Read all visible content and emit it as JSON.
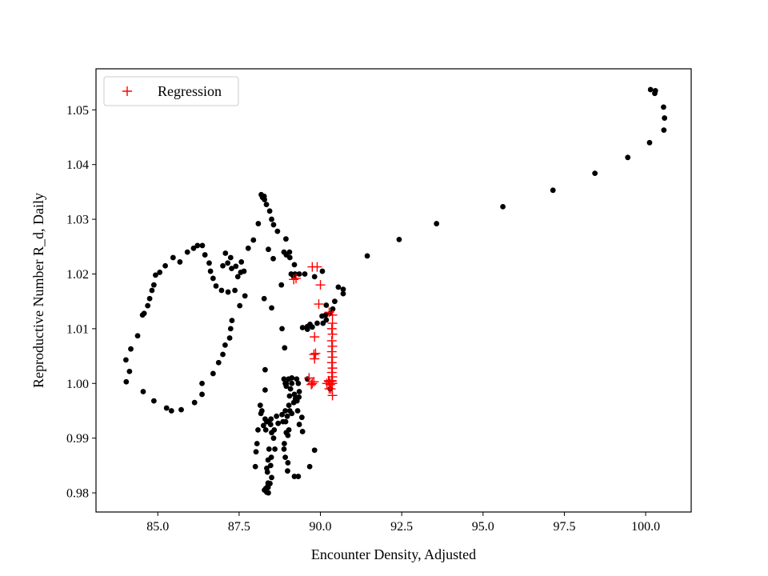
{
  "chart_data": {
    "type": "scatter",
    "title": "",
    "xlabel": "Encounter Density, Adjusted",
    "ylabel": "Reproductive Number R_d, Daily",
    "xlim": [
      83.1,
      101.4
    ],
    "ylim": [
      0.9765,
      1.0575
    ],
    "grid": false,
    "legend_position": "top-left",
    "x_ticks": [
      {
        "value": 85.0,
        "label": "85.0"
      },
      {
        "value": 87.5,
        "label": "87.5"
      },
      {
        "value": 90.0,
        "label": "90.0"
      },
      {
        "value": 92.5,
        "label": "92.5"
      },
      {
        "value": 95.0,
        "label": "95.0"
      },
      {
        "value": 97.5,
        "label": "97.5"
      },
      {
        "value": 100.0,
        "label": "100.0"
      }
    ],
    "y_ticks": [
      {
        "value": 0.98,
        "label": "0.98"
      },
      {
        "value": 0.99,
        "label": "0.99"
      },
      {
        "value": 1.0,
        "label": "1.00"
      },
      {
        "value": 1.01,
        "label": "1.01"
      },
      {
        "value": 1.02,
        "label": "1.02"
      },
      {
        "value": 1.03,
        "label": "1.03"
      },
      {
        "value": 1.04,
        "label": "1.04"
      },
      {
        "value": 1.05,
        "label": "1.05"
      }
    ],
    "series": [
      {
        "marker": "dot",
        "color": "#000000",
        "points": [
          [
            100.15,
            1.0537
          ],
          [
            100.3,
            1.0535
          ],
          [
            100.28,
            1.053
          ],
          [
            100.55,
            1.0505
          ],
          [
            100.58,
            1.0485
          ],
          [
            100.56,
            1.0463
          ],
          [
            100.12,
            1.044
          ],
          [
            99.45,
            1.0413
          ],
          [
            98.44,
            1.0384
          ],
          [
            97.15,
            1.0353
          ],
          [
            95.61,
            1.0323
          ],
          [
            93.57,
            1.0292
          ],
          [
            92.42,
            1.0263
          ],
          [
            91.44,
            1.0233
          ],
          [
            90.7,
            1.0172
          ],
          [
            90.7,
            1.0164
          ],
          [
            90.55,
            1.0176
          ],
          [
            90.44,
            1.015
          ],
          [
            90.18,
            1.0143
          ],
          [
            90.3,
            1.0128
          ],
          [
            90.38,
            1.0136
          ],
          [
            90.16,
            1.0125
          ],
          [
            90.05,
            1.0123
          ],
          [
            90.18,
            1.0116
          ],
          [
            90.08,
            1.011
          ],
          [
            89.9,
            1.011
          ],
          [
            89.75,
            1.0103
          ],
          [
            89.6,
            1.0104
          ],
          [
            89.45,
            1.0102
          ],
          [
            89.6,
            1.0099
          ],
          [
            89.68,
            1.0108
          ],
          [
            90.06,
            1.0205
          ],
          [
            89.82,
            1.0195
          ],
          [
            89.52,
            1.02
          ],
          [
            89.35,
            1.02
          ],
          [
            89.18,
            1.0195
          ],
          [
            89.22,
            1.02
          ],
          [
            88.8,
            1.018
          ],
          [
            89.06,
            1.023
          ],
          [
            89.05,
            1.024
          ],
          [
            88.88,
            1.024
          ],
          [
            88.95,
            1.0235
          ],
          [
            88.55,
            1.0228
          ],
          [
            88.4,
            1.0245
          ],
          [
            89.2,
            1.0217
          ],
          [
            89.1,
            1.02
          ],
          [
            88.94,
            1.0264
          ],
          [
            88.68,
            1.0278
          ],
          [
            88.56,
            1.029
          ],
          [
            88.5,
            1.03
          ],
          [
            88.44,
            1.0315
          ],
          [
            88.34,
            1.0327
          ],
          [
            88.28,
            1.0336
          ],
          [
            88.22,
            1.034
          ],
          [
            88.18,
            1.0345
          ],
          [
            88.27,
            1.0342
          ],
          [
            88.09,
            1.0292
          ],
          [
            87.94,
            1.0262
          ],
          [
            87.78,
            1.0247
          ],
          [
            87.57,
            1.0222
          ],
          [
            87.55,
            1.0203
          ],
          [
            87.46,
            1.0195
          ],
          [
            87.24,
            1.023
          ],
          [
            87.08,
            1.0238
          ],
          [
            87.15,
            1.022
          ],
          [
            87.0,
            1.0215
          ],
          [
            87.27,
            1.021
          ],
          [
            87.4,
            1.0214
          ],
          [
            87.65,
            1.0205
          ],
          [
            87.37,
            1.017
          ],
          [
            87.16,
            1.0167
          ],
          [
            86.96,
            1.017
          ],
          [
            86.79,
            1.0178
          ],
          [
            86.7,
            1.0192
          ],
          [
            86.62,
            1.0205
          ],
          [
            86.58,
            1.022
          ],
          [
            86.45,
            1.0235
          ],
          [
            86.37,
            1.0252
          ],
          [
            86.22,
            1.0252
          ],
          [
            86.1,
            1.0247
          ],
          [
            85.91,
            1.024
          ],
          [
            85.68,
            1.0222
          ],
          [
            85.47,
            1.023
          ],
          [
            85.23,
            1.0215
          ],
          [
            85.06,
            1.0203
          ],
          [
            84.93,
            1.0198
          ],
          [
            84.88,
            1.018
          ],
          [
            84.82,
            1.017
          ],
          [
            84.75,
            1.0155
          ],
          [
            84.69,
            1.0142
          ],
          [
            84.58,
            1.0128
          ],
          [
            84.53,
            1.0125
          ],
          [
            84.38,
            1.0087
          ],
          [
            84.17,
            1.0063
          ],
          [
            84.02,
            1.0043
          ],
          [
            84.03,
            1.0003
          ],
          [
            84.13,
            1.0022
          ],
          [
            84.55,
            0.9985
          ],
          [
            84.88,
            0.9968
          ],
          [
            85.27,
            0.9955
          ],
          [
            85.42,
            0.995
          ],
          [
            85.72,
            0.9952
          ],
          [
            86.13,
            0.9965
          ],
          [
            86.36,
            0.998
          ],
          [
            86.36,
            1.0
          ],
          [
            86.7,
            1.0018
          ],
          [
            86.87,
            1.0038
          ],
          [
            87.0,
            1.0053
          ],
          [
            87.07,
            1.007
          ],
          [
            87.21,
            1.0083
          ],
          [
            87.24,
            1.01
          ],
          [
            87.28,
            1.0115
          ],
          [
            87.52,
            1.0142
          ],
          [
            87.68,
            1.016
          ],
          [
            88.27,
            1.0155
          ],
          [
            88.5,
            1.0138
          ],
          [
            88.82,
            1.01
          ],
          [
            88.9,
            1.0065
          ],
          [
            88.3,
            1.0025
          ],
          [
            88.3,
            0.9988
          ],
          [
            88.2,
            0.995
          ],
          [
            88.48,
            0.9935
          ],
          [
            88.65,
            0.994
          ],
          [
            88.82,
            0.9943
          ],
          [
            89.06,
            0.995
          ],
          [
            89.18,
            0.9965
          ],
          [
            89.23,
            0.9972
          ],
          [
            89.3,
            0.995
          ],
          [
            89.43,
            0.9938
          ],
          [
            89.35,
            0.9925
          ],
          [
            89.03,
            0.9915
          ],
          [
            89.0,
            0.9905
          ],
          [
            88.5,
            0.991
          ],
          [
            88.32,
            0.9915
          ],
          [
            88.25,
            0.9923
          ],
          [
            88.3,
            0.9935
          ],
          [
            88.35,
            0.993
          ],
          [
            88.47,
            0.9925
          ],
          [
            88.7,
            0.9927
          ],
          [
            88.85,
            0.993
          ],
          [
            88.98,
            0.994
          ],
          [
            89.12,
            0.9945
          ],
          [
            89.03,
            0.996
          ],
          [
            89.05,
            0.9977
          ],
          [
            89.08,
            0.999
          ],
          [
            89.12,
            1.0
          ],
          [
            88.95,
            1.0
          ],
          [
            88.88,
            1.0008
          ],
          [
            88.92,
            1.0
          ],
          [
            89.02,
            1.0008
          ],
          [
            89.12,
            1.001
          ],
          [
            89.27,
            1.0008
          ],
          [
            89.32,
            1.0
          ],
          [
            89.35,
            0.9985
          ],
          [
            89.34,
            0.9975
          ],
          [
            89.28,
            0.9968
          ],
          [
            88.95,
            0.9995
          ],
          [
            88.92,
            0.995
          ],
          [
            88.93,
            0.993
          ],
          [
            88.95,
            0.991
          ],
          [
            88.89,
            0.989
          ],
          [
            88.88,
            0.988
          ],
          [
            88.92,
            0.9865
          ],
          [
            89.0,
            0.9855
          ],
          [
            88.99,
            0.984
          ],
          [
            89.2,
            0.983
          ],
          [
            89.32,
            0.983
          ],
          [
            89.67,
            0.9848
          ],
          [
            89.82,
            0.9878
          ],
          [
            89.45,
            0.9912
          ],
          [
            88.56,
            0.99
          ],
          [
            88.42,
            0.988
          ],
          [
            88.39,
            0.986
          ],
          [
            88.35,
            0.9845
          ],
          [
            88.37,
            0.9838
          ],
          [
            88.39,
            0.9818
          ],
          [
            88.38,
            0.9812
          ],
          [
            88.32,
            0.9808
          ],
          [
            88.28,
            0.9805
          ],
          [
            88.35,
            0.9801
          ],
          [
            88.39,
            0.981
          ],
          [
            88.4,
            0.98
          ],
          [
            88.45,
            0.9817
          ],
          [
            88.5,
            0.9828
          ],
          [
            88.47,
            0.985
          ],
          [
            88.49,
            0.9865
          ],
          [
            88.6,
            0.988
          ],
          [
            88.58,
            0.9915
          ],
          [
            88.4,
            0.993
          ],
          [
            88.0,
            0.9848
          ],
          [
            88.02,
            0.9875
          ],
          [
            88.05,
            0.989
          ],
          [
            88.08,
            0.9915
          ],
          [
            88.17,
            0.9945
          ],
          [
            88.15,
            0.996
          ],
          [
            89.2,
            0.998
          ],
          [
            89.6,
            1.0008
          ],
          [
            90.3,
            0.999
          ]
        ]
      },
      {
        "name": "Regression",
        "marker": "plus",
        "color": "#ff0000",
        "points": [
          [
            89.75,
            1.0213
          ],
          [
            89.9,
            1.0213
          ],
          [
            90.0,
            1.018
          ],
          [
            89.18,
            1.019
          ],
          [
            89.25,
            1.0192
          ],
          [
            89.95,
            1.0145
          ],
          [
            90.27,
            1.013
          ],
          [
            90.37,
            1.0125
          ],
          [
            90.37,
            1.011
          ],
          [
            90.35,
            1.01
          ],
          [
            90.37,
            1.009
          ],
          [
            90.35,
            1.0078
          ],
          [
            90.37,
            1.0068
          ],
          [
            90.35,
            1.0058
          ],
          [
            90.37,
            1.0048
          ],
          [
            90.35,
            1.0038
          ],
          [
            90.37,
            1.0028
          ],
          [
            90.35,
            1.002
          ],
          [
            90.37,
            1.0012
          ],
          [
            90.35,
            1.0005
          ],
          [
            90.37,
            1.0
          ],
          [
            90.3,
            0.9998
          ],
          [
            90.2,
            1.0
          ],
          [
            90.25,
            1.0005
          ],
          [
            90.32,
            0.999
          ],
          [
            90.37,
            0.9978
          ],
          [
            90.27,
            0.999
          ],
          [
            90.3,
            1.0
          ],
          [
            89.82,
            1.0085
          ],
          [
            89.85,
            1.0055
          ],
          [
            89.8,
            1.0053
          ],
          [
            89.82,
            1.0045
          ],
          [
            89.65,
            1.001
          ],
          [
            89.75,
            1.0
          ],
          [
            89.72,
            0.9998
          ],
          [
            89.8,
            1.0003
          ],
          [
            90.27,
            1.0003
          ],
          [
            90.35,
            1.0004
          ]
        ]
      }
    ],
    "legend": [
      {
        "label": "Regression",
        "marker": "plus",
        "color": "#ff0000"
      }
    ]
  }
}
